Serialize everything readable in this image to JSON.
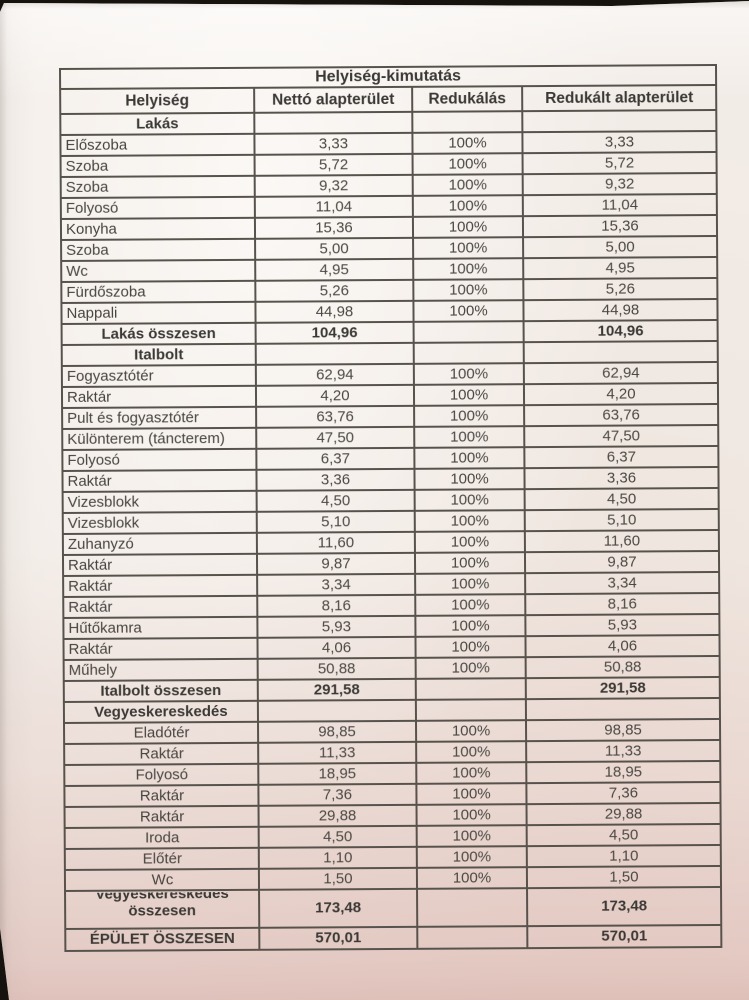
{
  "photo": {
    "background_color": "#16130e",
    "paper_color": "#f2ece7",
    "bottom_tint": "#d9a49a",
    "line_color": "#57534c",
    "ink_color": "#3b3935"
  },
  "table": {
    "title": "Helyiség-kimutatás",
    "columns": [
      "Helyiség",
      "Nettó alapterület",
      "Redukálás",
      "Redukált alapterület"
    ],
    "sections": [
      {
        "name": "Lakás",
        "align": "left",
        "rows": [
          {
            "name": "Előszoba",
            "net": "3,33",
            "reduction": "100%",
            "reduced": "3,33"
          },
          {
            "name": "Szoba",
            "net": "5,72",
            "reduction": "100%",
            "reduced": "5,72"
          },
          {
            "name": "Szoba",
            "net": "9,32",
            "reduction": "100%",
            "reduced": "9,32"
          },
          {
            "name": "Folyosó",
            "net": "11,04",
            "reduction": "100%",
            "reduced": "11,04"
          },
          {
            "name": "Konyha",
            "net": "15,36",
            "reduction": "100%",
            "reduced": "15,36"
          },
          {
            "name": "Szoba",
            "net": "5,00",
            "reduction": "100%",
            "reduced": "5,00"
          },
          {
            "name": "Wc",
            "net": "4,95",
            "reduction": "100%",
            "reduced": "4,95"
          },
          {
            "name": "Fürdőszoba",
            "net": "5,26",
            "reduction": "100%",
            "reduced": "5,26"
          },
          {
            "name": "Nappali",
            "net": "44,98",
            "reduction": "100%",
            "reduced": "44,98"
          }
        ],
        "total": {
          "label": "Lakás összesen",
          "net": "104,96",
          "reduction": "",
          "reduced": "104,96"
        }
      },
      {
        "name": "Italbolt",
        "align": "left",
        "rows": [
          {
            "name": "Fogyasztótér",
            "net": "62,94",
            "reduction": "100%",
            "reduced": "62,94"
          },
          {
            "name": "Raktár",
            "net": "4,20",
            "reduction": "100%",
            "reduced": "4,20"
          },
          {
            "name": "Pult és fogyasztótér",
            "net": "63,76",
            "reduction": "100%",
            "reduced": "63,76"
          },
          {
            "name": "Különterem (táncterem)",
            "net": "47,50",
            "reduction": "100%",
            "reduced": "47,50"
          },
          {
            "name": "Folyosó",
            "net": "6,37",
            "reduction": "100%",
            "reduced": "6,37"
          },
          {
            "name": "Raktár",
            "net": "3,36",
            "reduction": "100%",
            "reduced": "3,36"
          },
          {
            "name": "Vizesblokk",
            "net": "4,50",
            "reduction": "100%",
            "reduced": "4,50"
          },
          {
            "name": "Vizesblokk",
            "net": "5,10",
            "reduction": "100%",
            "reduced": "5,10"
          },
          {
            "name": "Zuhanyzó",
            "net": "11,60",
            "reduction": "100%",
            "reduced": "11,60"
          },
          {
            "name": "Raktár",
            "net": "9,87",
            "reduction": "100%",
            "reduced": "9,87"
          },
          {
            "name": "Raktár",
            "net": "3,34",
            "reduction": "100%",
            "reduced": "3,34"
          },
          {
            "name": "Raktár",
            "net": "8,16",
            "reduction": "100%",
            "reduced": "8,16"
          },
          {
            "name": "Hűtőkamra",
            "net": "5,93",
            "reduction": "100%",
            "reduced": "5,93"
          },
          {
            "name": "Raktár",
            "net": "4,06",
            "reduction": "100%",
            "reduced": "4,06"
          },
          {
            "name": "Műhely",
            "net": "50,88",
            "reduction": "100%",
            "reduced": "50,88"
          }
        ],
        "total": {
          "label": "Italbolt összesen",
          "net": "291,58",
          "reduction": "",
          "reduced": "291,58"
        }
      },
      {
        "name": "Vegyeskereskedés",
        "align": "center",
        "rows": [
          {
            "name": "Eladótér",
            "net": "98,85",
            "reduction": "100%",
            "reduced": "98,85"
          },
          {
            "name": "Raktár",
            "net": "11,33",
            "reduction": "100%",
            "reduced": "11,33"
          },
          {
            "name": "Folyosó",
            "net": "18,95",
            "reduction": "100%",
            "reduced": "18,95"
          },
          {
            "name": "Raktár",
            "net": "7,36",
            "reduction": "100%",
            "reduced": "7,36"
          },
          {
            "name": "Raktár",
            "net": "29,88",
            "reduction": "100%",
            "reduced": "29,88"
          },
          {
            "name": "Iroda",
            "net": "4,50",
            "reduction": "100%",
            "reduced": "4,50"
          },
          {
            "name": "Előtér",
            "net": "1,10",
            "reduction": "100%",
            "reduced": "1,10"
          },
          {
            "name": "Wc",
            "net": "1,50",
            "reduction": "100%",
            "reduced": "1,50"
          }
        ],
        "total": {
          "label": "Vegyeskereskedés összesen",
          "net": "173,48",
          "reduction": "",
          "reduced": "173,48",
          "tall": true
        }
      }
    ],
    "grand_total": {
      "label": "ÉPÜLET ÖSSZESEN",
      "net": "570,01",
      "reduction": "",
      "reduced": "570,01"
    }
  }
}
